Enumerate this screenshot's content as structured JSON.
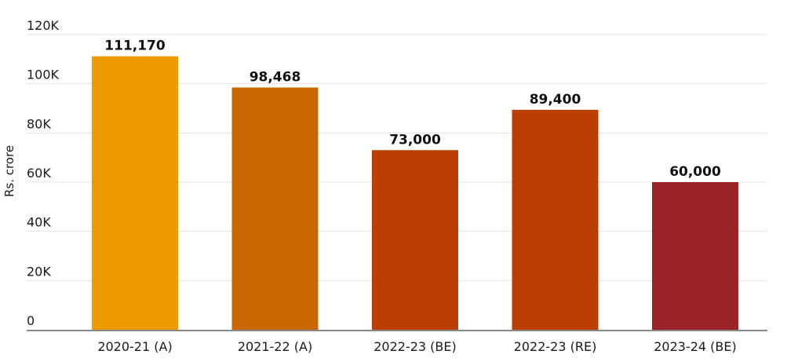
{
  "chart_data": {
    "type": "bar",
    "categories": [
      "2020-21 (A)",
      "2021-22 (A)",
      "2022-23 (BE)",
      "2022-23 (RE)",
      "2023-24 (BE)"
    ],
    "values": [
      111170,
      98468,
      73000,
      89400,
      60000
    ],
    "data_labels": [
      "111,170",
      "98,468",
      "73,000",
      "89,400",
      "60,000"
    ],
    "colors": [
      "#EE9B00",
      "#CA6702",
      "#BB3E03",
      "#BB3E03",
      "#9B2226"
    ],
    "title": "",
    "xlabel": "",
    "ylabel": "Rs. crore",
    "ylim": [
      0,
      120000
    ],
    "yticks": [
      0,
      20000,
      40000,
      60000,
      80000,
      100000,
      120000
    ],
    "ytick_labels": [
      "0",
      "20K",
      "40K",
      "60K",
      "80K",
      "100K",
      "120K"
    ],
    "grid": true,
    "legend": "none"
  }
}
